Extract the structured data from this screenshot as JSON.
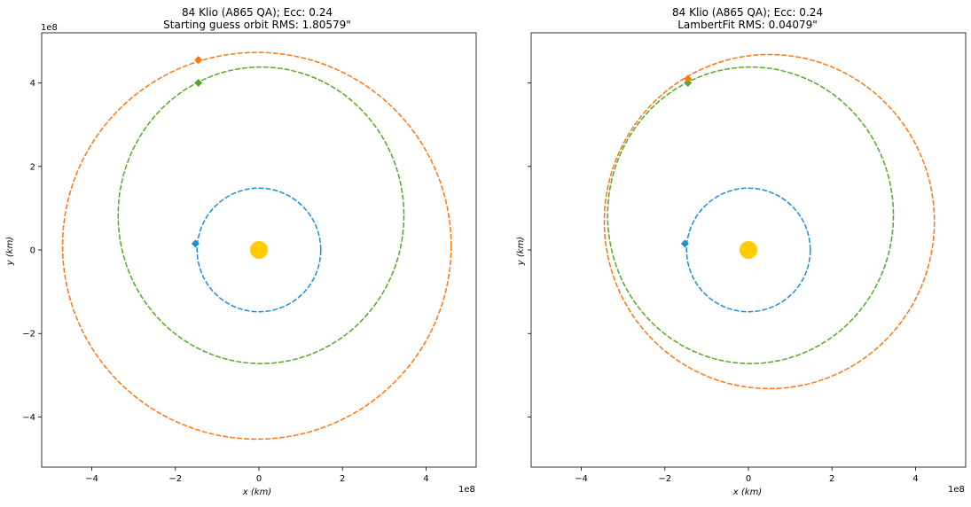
{
  "chart_data": [
    {
      "type": "scatter",
      "title": "84 Klio (A865 QA); Ecc: 0.24",
      "subtitle": "Starting guess orbit RMS: 1.80579\"",
      "xlabel": "x (km)",
      "ylabel": "y (km)",
      "xlim": [
        -5.2,
        5.2
      ],
      "ylim": [
        -5.2,
        5.2
      ],
      "scale_label_x": "1e8",
      "scale_label_y": "1e8",
      "xticks": [
        -4,
        -2,
        0,
        2,
        4
      ],
      "yticks": [
        -4,
        -2,
        0,
        2,
        4
      ],
      "xtick_labels": [
        "−4",
        "−2",
        "0",
        "2",
        "4"
      ],
      "ytick_labels": [
        "−4",
        "−2",
        "0",
        "2",
        "4"
      ],
      "show_yticklabels": true,
      "grid": false,
      "sun": {
        "x": 0,
        "y": 0,
        "color": "#ffcc00"
      },
      "orbits": [
        {
          "color": "#1f8fd0",
          "cx": 0,
          "cy": 0,
          "rx": 1.48,
          "ry": 1.48
        },
        {
          "color": "#56a82a",
          "cx": 0.05,
          "cy": 0.83,
          "rx": 3.42,
          "ry": 3.55
        },
        {
          "color": "#ff7711",
          "cx": -0.05,
          "cy": 0.1,
          "rx": 4.65,
          "ry": 4.63
        }
      ],
      "markers": [
        {
          "color": "#1f8fd0",
          "x": -1.52,
          "y": 0.15
        },
        {
          "color": "#56a82a",
          "x": -1.45,
          "y": 4.0
        },
        {
          "color": "#ff7711",
          "x": -1.45,
          "y": 4.55
        }
      ]
    },
    {
      "type": "scatter",
      "title": "84 Klio (A865 QA); Ecc: 0.24",
      "subtitle": "LambertFit RMS: 0.04079\"",
      "xlabel": "x (km)",
      "ylabel": "y (km)",
      "xlim": [
        -5.2,
        5.2
      ],
      "ylim": [
        -5.2,
        5.2
      ],
      "scale_label_x": "1e8",
      "scale_label_y": "",
      "xticks": [
        -4,
        -2,
        0,
        2,
        4
      ],
      "yticks": [
        -4,
        -2,
        0,
        2,
        4
      ],
      "xtick_labels": [
        "−4",
        "−2",
        "0",
        "2",
        "4"
      ],
      "ytick_labels": [
        "",
        "",
        "",
        "",
        ""
      ],
      "show_yticklabels": false,
      "grid": false,
      "sun": {
        "x": 0,
        "y": 0,
        "color": "#ffcc00"
      },
      "orbits": [
        {
          "color": "#1f8fd0",
          "cx": 0,
          "cy": 0,
          "rx": 1.48,
          "ry": 1.48
        },
        {
          "color": "#56a82a",
          "cx": 0.05,
          "cy": 0.83,
          "rx": 3.42,
          "ry": 3.55
        },
        {
          "color": "#ff7711",
          "cx": 0.5,
          "cy": 0.68,
          "rx": 3.95,
          "ry": 4.0
        }
      ],
      "markers": [
        {
          "color": "#1f8fd0",
          "x": -1.52,
          "y": 0.15
        },
        {
          "color": "#56a82a",
          "x": -1.45,
          "y": 4.0
        },
        {
          "color": "#ff7711",
          "x": -1.45,
          "y": 4.1
        }
      ]
    }
  ]
}
